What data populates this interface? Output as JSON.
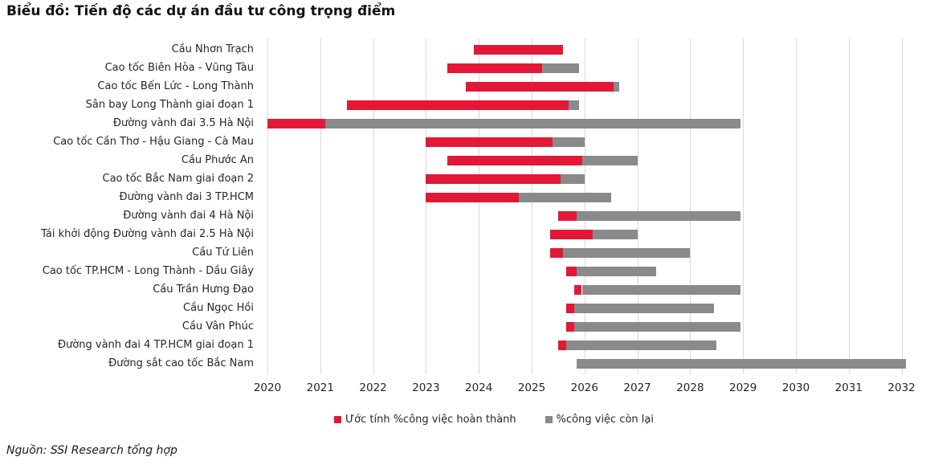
{
  "title": "Biểu đồ: Tiến độ các dự án đầu tư công trọng điểm",
  "source": "Nguồn: SSI Research tổng hợp",
  "legend": [
    {
      "label": "Ước tính %công việc hoàn thành",
      "color": "#e21836"
    },
    {
      "label": "%công việc còn lại",
      "color": "#8a8a8a"
    }
  ],
  "chart_data": {
    "type": "bar",
    "subtype": "gantt-timeline",
    "title": "Biểu đồ: Tiến độ các dự án đầu tư công trọng điểm",
    "xlabel": "",
    "ylabel": "",
    "x_axis": {
      "min": 2020,
      "max": 2032,
      "ticks": [
        2020,
        2021,
        2022,
        2023,
        2024,
        2025,
        2026,
        2027,
        2028,
        2029,
        2030,
        2031,
        2032
      ]
    },
    "grid": "vertical-only",
    "legend_position": "bottom-center",
    "colors": {
      "completed": "#e21836",
      "remaining": "#8a8a8a",
      "gridline": "#d9d9d9"
    },
    "series": [
      {
        "name": "Ước tính %công việc hoàn thành",
        "role": "completed"
      },
      {
        "name": "%công việc còn lại",
        "role": "remaining"
      }
    ],
    "projects": [
      {
        "name": "Cầu Nhơn Trạch",
        "start": 2023.9,
        "completed_until": 2025.6,
        "end": 2025.6
      },
      {
        "name": "Cao tốc Biên Hòa - Vũng Tàu",
        "start": 2023.4,
        "completed_until": 2025.2,
        "end": 2025.9
      },
      {
        "name": "Cao tốc Bến Lức - Long Thành",
        "start": 2023.75,
        "completed_until": 2026.55,
        "end": 2026.65
      },
      {
        "name": "Sân bay Long Thành giai đoạn 1",
        "start": 2021.5,
        "completed_until": 2025.7,
        "end": 2025.9
      },
      {
        "name": "Đường vành đai 3.5 Hà Nội",
        "start": 2020.0,
        "completed_until": 2021.1,
        "end": 2028.95
      },
      {
        "name": "Cao tốc Cần Thơ - Hậu Giang - Cà Mau",
        "start": 2023.0,
        "completed_until": 2025.4,
        "end": 2026.0
      },
      {
        "name": "Cầu Phước An",
        "start": 2023.4,
        "completed_until": 2025.95,
        "end": 2027.0
      },
      {
        "name": "Cao tốc Bắc Nam giai đoạn 2",
        "start": 2023.0,
        "completed_until": 2025.55,
        "end": 2026.0
      },
      {
        "name": "Đường vành đai 3 TP.HCM",
        "start": 2023.0,
        "completed_until": 2024.75,
        "end": 2026.5
      },
      {
        "name": "Đường vành đai 4 Hà Nội",
        "start": 2025.5,
        "completed_until": 2025.85,
        "end": 2028.95
      },
      {
        "name": "Tái khởi động Đường vành đai 2.5 Hà Nội",
        "start": 2025.35,
        "completed_until": 2026.15,
        "end": 2027.0
      },
      {
        "name": "Cầu Tứ Liên",
        "start": 2025.35,
        "completed_until": 2025.6,
        "end": 2028.0
      },
      {
        "name": "Cao tốc TP.HCM - Long Thành - Dầu Giây",
        "start": 2025.65,
        "completed_until": 2025.85,
        "end": 2027.35
      },
      {
        "name": "Cầu Trần Hưng Đạo",
        "start": 2025.8,
        "completed_until": 2025.95,
        "end": 2028.95
      },
      {
        "name": "Cầu Ngọc Hồi",
        "start": 2025.65,
        "completed_until": 2025.8,
        "end": 2028.45
      },
      {
        "name": "Cầu Vân Phúc",
        "start": 2025.65,
        "completed_until": 2025.8,
        "end": 2028.95
      },
      {
        "name": "Đường vành đai 4 TP.HCM giai đoạn 1",
        "start": 2025.5,
        "completed_until": 2025.65,
        "end": 2028.5
      },
      {
        "name": "Đường sắt cao tốc Bắc Nam",
        "start": 2025.85,
        "completed_until": 2025.85,
        "end": 2032.08
      }
    ]
  }
}
